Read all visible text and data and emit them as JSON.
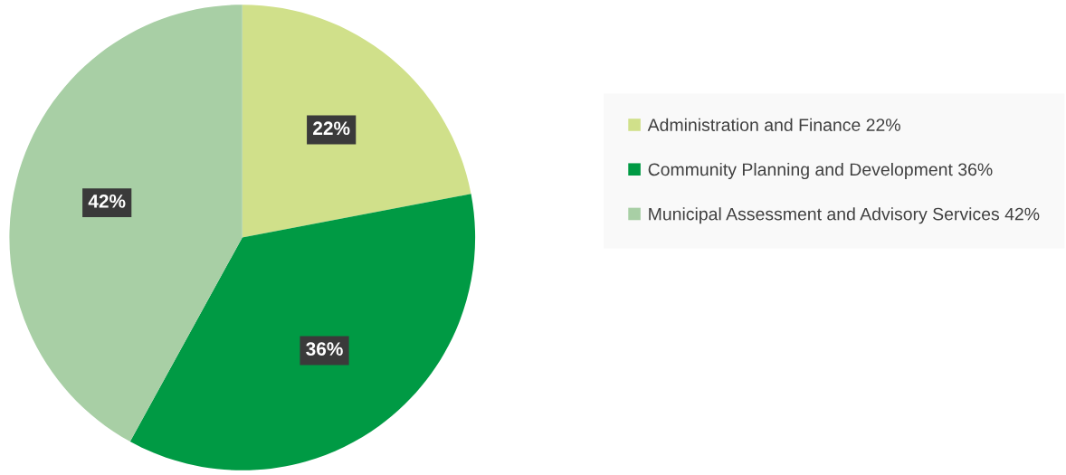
{
  "chart_data": {
    "type": "pie",
    "categories": [
      "Administration and Finance 22%",
      "Community Planning and Development 36%",
      "Municipal Assessment and Advisory Services 42%"
    ],
    "values": [
      22,
      36,
      42
    ],
    "colors": [
      "#d0e08a",
      "#009a44",
      "#a8cfa5"
    ],
    "value_labels": [
      "22%",
      "36%",
      "42%"
    ],
    "legend": "right"
  }
}
